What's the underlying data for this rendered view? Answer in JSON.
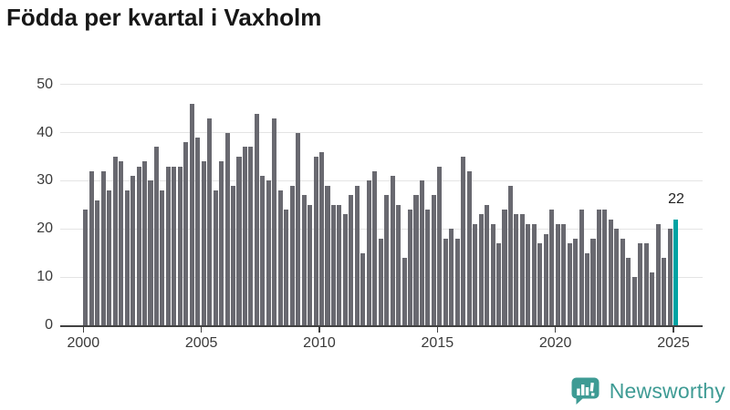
{
  "header": {
    "title": "Födda per kvartal i Vaxholm"
  },
  "chart_data": {
    "type": "bar",
    "title": "Födda per kvartal i Vaxholm",
    "x_unit": "quarter",
    "x_start": "2000-Q1",
    "x_end": "2025-Q1",
    "values": [
      24,
      32,
      26,
      32,
      28,
      35,
      34,
      28,
      31,
      33,
      34,
      30,
      37,
      28,
      33,
      33,
      33,
      38,
      46,
      39,
      34,
      43,
      28,
      34,
      40,
      29,
      35,
      37,
      37,
      44,
      31,
      30,
      43,
      28,
      24,
      29,
      40,
      27,
      25,
      35,
      36,
      29,
      25,
      25,
      23,
      27,
      29,
      15,
      30,
      32,
      18,
      27,
      31,
      25,
      14,
      24,
      27,
      30,
      24,
      27,
      33,
      18,
      20,
      18,
      35,
      32,
      21,
      23,
      25,
      21,
      17,
      24,
      29,
      23,
      23,
      21,
      21,
      17,
      19,
      24,
      21,
      21,
      17,
      18,
      24,
      15,
      18,
      24,
      24,
      22,
      20,
      18,
      14,
      10,
      17,
      17,
      11,
      21,
      14,
      20,
      22
    ],
    "y_ticks": [
      0,
      10,
      20,
      30,
      40,
      50
    ],
    "x_ticks": [
      2000,
      2005,
      2010,
      2015,
      2020,
      2025
    ],
    "ylim": [
      0,
      50
    ],
    "grid": "horizontal",
    "legend": "none",
    "bar_color": "#696970",
    "highlight": {
      "index": 100,
      "period": "2025-Q1",
      "value": 22,
      "label": "22",
      "color": "#00a3a3"
    }
  },
  "footer": {
    "brand": {
      "name": "Newsworthy",
      "color": "#3e9b94",
      "icon": "bar-chart-speech-bubble-icon"
    }
  }
}
